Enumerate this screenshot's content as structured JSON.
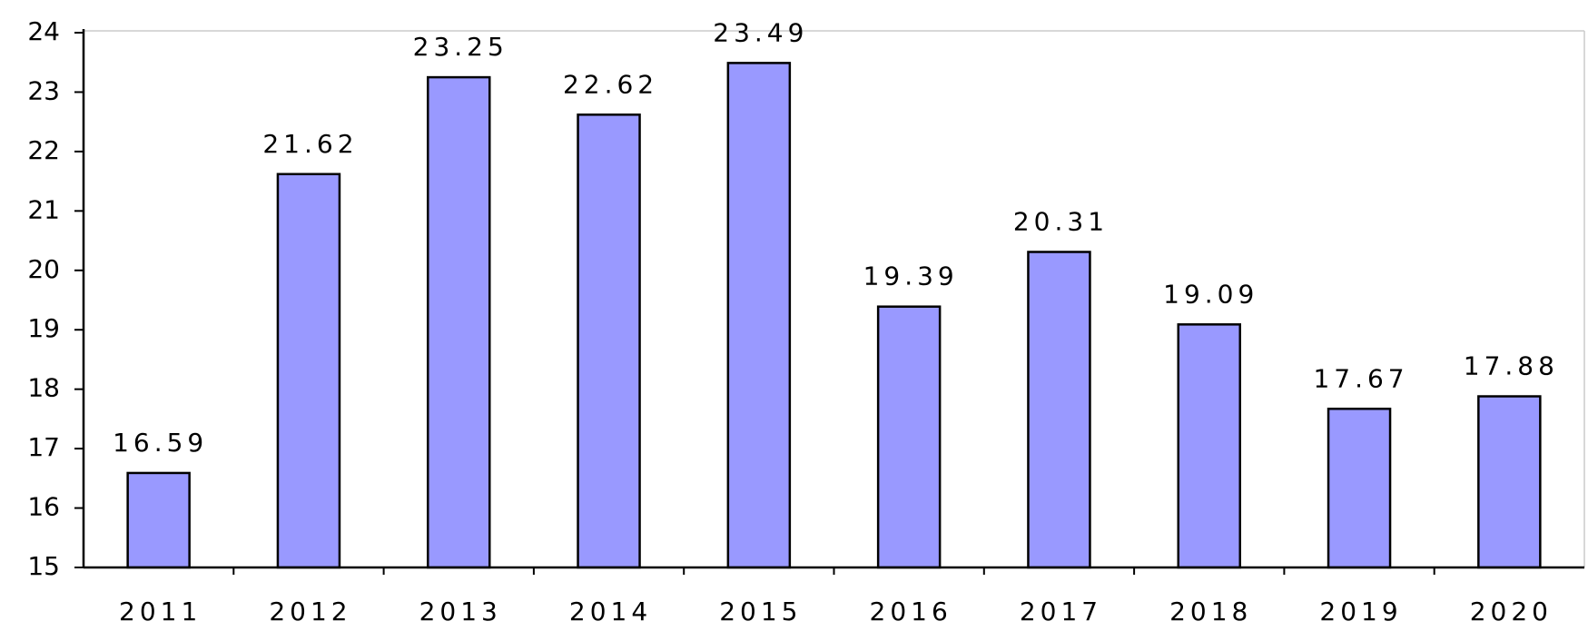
{
  "chart_data": {
    "type": "bar",
    "categories": [
      "2011",
      "2012",
      "2013",
      "2014",
      "2015",
      "2016",
      "2017",
      "2018",
      "2019",
      "2020"
    ],
    "values": [
      16.59,
      21.62,
      23.25,
      22.62,
      23.49,
      19.39,
      20.31,
      19.09,
      17.67,
      17.88
    ],
    "color": "#9999ff",
    "ylim": [
      15,
      24
    ],
    "yticks": [
      15,
      16,
      17,
      18,
      19,
      20,
      21,
      22,
      23,
      24
    ],
    "grid": false
  }
}
